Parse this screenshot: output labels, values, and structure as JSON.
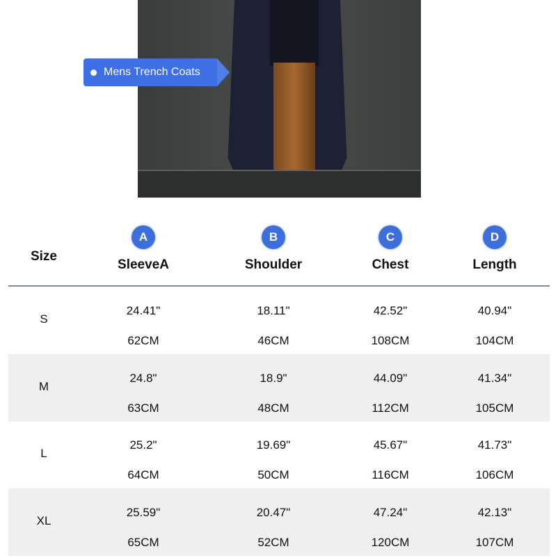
{
  "product_tag": "Mens Trench Coats",
  "colors": {
    "accent": "#3d6fdc",
    "stripe": "#efefef"
  },
  "table": {
    "size_header": "Size",
    "columns": [
      {
        "badge": "A",
        "label": "SleeveA"
      },
      {
        "badge": "B",
        "label": "Shoulder"
      },
      {
        "badge": "C",
        "label": "Chest"
      },
      {
        "badge": "D",
        "label": "Length"
      }
    ],
    "rows": [
      {
        "size": "S",
        "inch": [
          "24.41\"",
          "18.11\"",
          "42.52\"",
          "40.94\""
        ],
        "cm": [
          "62CM",
          "46CM",
          "108CM",
          "104CM"
        ]
      },
      {
        "size": "M",
        "inch": [
          "24.8\"",
          "18.9\"",
          "44.09\"",
          "41.34\""
        ],
        "cm": [
          "63CM",
          "48CM",
          "112CM",
          "105CM"
        ]
      },
      {
        "size": "L",
        "inch": [
          "25.2\"",
          "19.69\"",
          "45.67\"",
          "41.73\""
        ],
        "cm": [
          "64CM",
          "50CM",
          "116CM",
          "106CM"
        ]
      },
      {
        "size": "XL",
        "inch": [
          "25.59\"",
          "20.47\"",
          "47.24\"",
          "42.13\""
        ],
        "cm": [
          "65CM",
          "52CM",
          "120CM",
          "107CM"
        ]
      }
    ]
  }
}
